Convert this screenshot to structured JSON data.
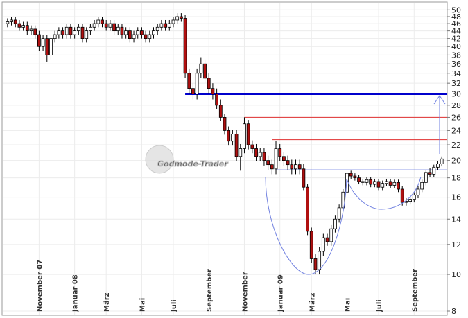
{
  "chart_data": {
    "type": "candlestick",
    "watermark": "Godmode-Trader",
    "categories": [
      null,
      null,
      null,
      null,
      null,
      null,
      null,
      null,
      "November 07",
      null,
      null,
      null,
      null,
      null,
      null,
      null,
      null,
      "Januar 08",
      null,
      null,
      null,
      null,
      null,
      null,
      null,
      "März",
      null,
      null,
      null,
      null,
      null,
      null,
      null,
      null,
      "Mai",
      null,
      null,
      null,
      null,
      null,
      null,
      null,
      "Juli",
      null,
      null,
      null,
      null,
      null,
      null,
      null,
      null,
      "September",
      null,
      null,
      null,
      null,
      null,
      null,
      null,
      null,
      "November",
      null,
      null,
      null,
      null,
      null,
      null,
      null,
      null,
      "Januar 09",
      null,
      null,
      null,
      null,
      null,
      null,
      null,
      "März",
      null,
      null,
      null,
      null,
      null,
      null,
      null,
      null,
      "Mai",
      null,
      null,
      null,
      null,
      null,
      null,
      null,
      "Juli",
      null,
      null,
      null,
      null,
      null,
      null,
      null,
      null,
      "September",
      null,
      null,
      null,
      null,
      null,
      null,
      null
    ],
    "open": [
      46,
      46.5,
      47,
      46,
      45,
      45.5,
      44,
      44.5,
      43,
      40,
      42,
      38,
      42,
      43,
      44,
      43,
      45,
      43,
      44,
      45,
      42,
      44,
      45,
      46,
      47,
      46,
      45,
      46,
      44,
      45,
      43,
      44,
      42,
      43,
      44,
      43,
      42,
      43,
      44,
      45,
      46,
      45,
      46,
      47,
      48,
      47.5,
      34,
      31,
      30,
      34,
      36,
      33,
      31,
      30,
      28,
      26,
      24,
      22.5,
      23.5,
      20.5,
      21.5,
      25,
      22,
      21.5,
      20.5,
      21,
      20,
      19.5,
      19,
      21.5,
      20.5,
      20,
      19.5,
      19,
      19.5,
      19,
      17,
      13,
      11,
      10.3,
      11.5,
      12.5,
      12.2,
      13.2,
      14,
      15,
      16.5,
      18.5,
      18.2,
      18,
      17.6,
      17.5,
      17.8,
      17.3,
      17.6,
      17,
      17.4,
      17.6,
      17.2,
      17.5,
      16.8,
      15.5,
      15.6,
      15.8,
      16.2,
      16.8,
      17.5,
      18.6,
      18.4,
      19.2,
      19.6
    ],
    "high": [
      47.5,
      48,
      48,
      47,
      46.5,
      46.5,
      45.5,
      45.5,
      44,
      43,
      43,
      43,
      44,
      45,
      45,
      46,
      46,
      45,
      46,
      46,
      45,
      46,
      47,
      48,
      48,
      47,
      47,
      47,
      46,
      46,
      45,
      45,
      44,
      45,
      45,
      44,
      44,
      45,
      46,
      47,
      47,
      47,
      48,
      49,
      49,
      48.5,
      35,
      32,
      35,
      37.5,
      37,
      34,
      32,
      31,
      29,
      26.6,
      24.6,
      24.1,
      24.1,
      22.1,
      26,
      25.6,
      22.6,
      22.1,
      21.6,
      21.6,
      20.6,
      20.1,
      22.5,
      22.1,
      21.1,
      20.6,
      20.1,
      20.1,
      20.1,
      19.6,
      17.3,
      13.3,
      11.3,
      11.8,
      12.8,
      12.8,
      13.5,
      14.3,
      15.3,
      16.8,
      18.8,
      18.8,
      18.5,
      18.3,
      17.9,
      18.1,
      18.1,
      17.9,
      17.9,
      17.7,
      17.9,
      17.9,
      17.8,
      17.8,
      17.1,
      15.9,
      16.1,
      16.5,
      17.1,
      17.8,
      18.9,
      19.1,
      19.5,
      19.9,
      20.5
    ],
    "low": [
      45,
      45.5,
      45,
      44,
      44,
      43,
      43,
      42,
      39,
      39,
      36.5,
      37,
      41,
      42,
      42,
      42,
      42,
      42,
      43,
      41,
      41,
      43,
      44,
      45,
      45,
      44,
      44,
      43,
      43,
      42,
      42,
      41,
      41,
      42,
      42,
      41,
      41,
      42,
      43,
      44,
      44,
      44,
      45,
      46,
      46.5,
      33,
      30,
      29,
      29,
      33,
      32,
      30,
      29,
      27.4,
      25.4,
      23.4,
      21.9,
      21.9,
      19.9,
      18.8,
      20.9,
      21.4,
      20.9,
      19.9,
      19.9,
      19.4,
      18.9,
      18.4,
      18.4,
      19.9,
      19.4,
      18.9,
      18.4,
      18.4,
      18.4,
      16.7,
      12.7,
      10.7,
      10,
      10,
      11.2,
      11.9,
      11.9,
      12.9,
      13.7,
      14.7,
      16.2,
      17.9,
      17.7,
      17.3,
      17.2,
      17.2,
      17,
      17,
      16.7,
      16.7,
      17.1,
      16.9,
      16.9,
      16.5,
      15.2,
      15.2,
      15.3,
      15.5,
      15.9,
      16.5,
      17.2,
      18.1,
      18.1,
      18.9,
      19.3
    ],
    "close": [
      46.5,
      47,
      46,
      45,
      45.5,
      44,
      44.5,
      43,
      40,
      42,
      38,
      42,
      43,
      44,
      43,
      45,
      43,
      44,
      45,
      42,
      44,
      45,
      46,
      47,
      46,
      45,
      46,
      44,
      45,
      43,
      44,
      42,
      43,
      44,
      43,
      42,
      43,
      44,
      45,
      46,
      45,
      46,
      47,
      48,
      47.5,
      34,
      31,
      30,
      34,
      36,
      33,
      31,
      30,
      28,
      26,
      24,
      22.5,
      23.5,
      20.5,
      21.5,
      25,
      22,
      21.5,
      20.5,
      21,
      20,
      19.5,
      19,
      21.5,
      20.5,
      20,
      19.5,
      19,
      19.5,
      19,
      17,
      13,
      11,
      10.3,
      11.5,
      12.5,
      12.2,
      13.2,
      14,
      15,
      16.5,
      18.5,
      18.2,
      18,
      17.6,
      17.5,
      17.8,
      17.3,
      17.6,
      17,
      17.4,
      17.6,
      17.2,
      17.5,
      16.8,
      15.5,
      15.6,
      15.8,
      16.2,
      16.8,
      17.5,
      18.6,
      18.4,
      19.2,
      19.6,
      20.2
    ],
    "up_color": "#ffffff",
    "down_color": "#b01010",
    "hlines": [
      {
        "value": 30,
        "color": "#0000cc"
      },
      {
        "value": 26,
        "color": "#e03030"
      },
      {
        "value": 22.7,
        "color": "#e03030"
      },
      {
        "value": 18.9,
        "color": "#7080e0"
      }
    ],
    "log_scale": true,
    "ylim": [
      7.8,
      52
    ],
    "yticks": [
      8,
      10,
      12,
      14,
      16,
      18,
      20,
      22,
      24,
      26,
      28,
      30,
      32,
      34,
      36,
      38,
      40,
      42,
      44,
      46,
      48,
      50
    ],
    "grid": true
  }
}
